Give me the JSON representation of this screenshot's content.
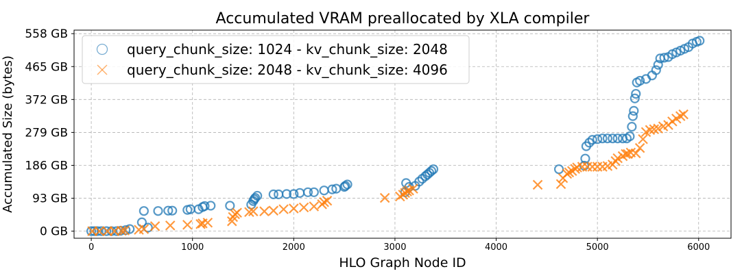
{
  "chart_data": {
    "type": "scatter",
    "title": "Accumulated VRAM preallocated by XLA compiler",
    "xlabel": "HLO Graph Node ID",
    "ylabel": "Accumulated Size (bytes)",
    "xlim": [
      -170,
      6320
    ],
    "ylim": [
      -20,
      568
    ],
    "x_ticks": [
      0,
      1000,
      2000,
      3000,
      4000,
      5000,
      6000
    ],
    "x_tick_labels": [
      "0",
      "1000",
      "2000",
      "3000",
      "4000",
      "5000",
      "6000"
    ],
    "y_ticks": [
      0,
      93,
      186,
      279,
      372,
      465,
      558
    ],
    "y_tick_labels": [
      "0 GB",
      "93 GB",
      "186 GB",
      "279 GB",
      "372 GB",
      "465 GB",
      "558 GB"
    ],
    "grid": true,
    "legend_position": "top-left",
    "series": [
      {
        "name": "query_chunk_size: 1024 - kv_chunk_size: 2048",
        "marker": "circle",
        "color": "#1f77b4",
        "points": [
          [
            0,
            0
          ],
          [
            30,
            0
          ],
          [
            60,
            0
          ],
          [
            100,
            0
          ],
          [
            150,
            0
          ],
          [
            200,
            0
          ],
          [
            250,
            0
          ],
          [
            290,
            1
          ],
          [
            340,
            3
          ],
          [
            380,
            6
          ],
          [
            500,
            25
          ],
          [
            520,
            57
          ],
          [
            560,
            10
          ],
          [
            660,
            57
          ],
          [
            760,
            58
          ],
          [
            800,
            58
          ],
          [
            950,
            60
          ],
          [
            980,
            62
          ],
          [
            1060,
            62
          ],
          [
            1100,
            68
          ],
          [
            1120,
            71
          ],
          [
            1180,
            72
          ],
          [
            1370,
            72
          ],
          [
            1580,
            75
          ],
          [
            1600,
            85
          ],
          [
            1610,
            90
          ],
          [
            1620,
            94
          ],
          [
            1640,
            100
          ],
          [
            1800,
            104
          ],
          [
            1850,
            104
          ],
          [
            1930,
            105
          ],
          [
            2000,
            105
          ],
          [
            2060,
            108
          ],
          [
            2140,
            110
          ],
          [
            2200,
            110
          ],
          [
            2300,
            115
          ],
          [
            2380,
            118
          ],
          [
            2420,
            120
          ],
          [
            2500,
            125
          ],
          [
            2510,
            128
          ],
          [
            2530,
            132
          ],
          [
            3100,
            110
          ],
          [
            3110,
            136
          ],
          [
            3140,
            125
          ],
          [
            3200,
            128
          ],
          [
            3240,
            140
          ],
          [
            3270,
            148
          ],
          [
            3300,
            155
          ],
          [
            3320,
            160
          ],
          [
            3340,
            165
          ],
          [
            3360,
            170
          ],
          [
            3380,
            175
          ],
          [
            4620,
            175
          ],
          [
            4870,
            185
          ],
          [
            4880,
            205
          ],
          [
            4890,
            240
          ],
          [
            4920,
            250
          ],
          [
            4950,
            258
          ],
          [
            5000,
            260
          ],
          [
            5050,
            262
          ],
          [
            5100,
            262
          ],
          [
            5150,
            262
          ],
          [
            5200,
            262
          ],
          [
            5250,
            262
          ],
          [
            5290,
            262
          ],
          [
            5320,
            268
          ],
          [
            5340,
            295
          ],
          [
            5350,
            325
          ],
          [
            5360,
            340
          ],
          [
            5370,
            375
          ],
          [
            5380,
            388
          ],
          [
            5390,
            420
          ],
          [
            5420,
            425
          ],
          [
            5480,
            430
          ],
          [
            5540,
            440
          ],
          [
            5580,
            455
          ],
          [
            5600,
            470
          ],
          [
            5620,
            488
          ],
          [
            5660,
            490
          ],
          [
            5700,
            492
          ],
          [
            5740,
            500
          ],
          [
            5780,
            505
          ],
          [
            5820,
            510
          ],
          [
            5860,
            515
          ],
          [
            5900,
            520
          ],
          [
            5940,
            530
          ],
          [
            5980,
            535
          ],
          [
            6010,
            538
          ]
        ]
      },
      {
        "name": "query_chunk_size: 2048 - kv_chunk_size: 4096",
        "marker": "x",
        "color": "#ff7f0e",
        "points": [
          [
            10,
            0
          ],
          [
            80,
            0
          ],
          [
            160,
            0
          ],
          [
            230,
            0
          ],
          [
            300,
            1
          ],
          [
            330,
            2
          ],
          [
            470,
            4
          ],
          [
            520,
            6
          ],
          [
            630,
            14
          ],
          [
            780,
            16
          ],
          [
            950,
            18
          ],
          [
            1080,
            20
          ],
          [
            1100,
            22
          ],
          [
            1150,
            24
          ],
          [
            1390,
            28
          ],
          [
            1400,
            40
          ],
          [
            1420,
            48
          ],
          [
            1440,
            52
          ],
          [
            1560,
            54
          ],
          [
            1600,
            56
          ],
          [
            1710,
            56
          ],
          [
            1800,
            58
          ],
          [
            1900,
            62
          ],
          [
            2000,
            64
          ],
          [
            2100,
            67
          ],
          [
            2200,
            70
          ],
          [
            2280,
            76
          ],
          [
            2300,
            82
          ],
          [
            2330,
            86
          ],
          [
            2900,
            94
          ],
          [
            3050,
            98
          ],
          [
            3080,
            103
          ],
          [
            3100,
            108
          ],
          [
            3120,
            112
          ],
          [
            3140,
            115
          ],
          [
            3180,
            120
          ],
          [
            4410,
            131
          ],
          [
            4640,
            133
          ],
          [
            4660,
            150
          ],
          [
            4700,
            162
          ],
          [
            4720,
            166
          ],
          [
            4750,
            170
          ],
          [
            4780,
            176
          ],
          [
            4800,
            180
          ],
          [
            4850,
            182
          ],
          [
            4900,
            182
          ],
          [
            4950,
            182
          ],
          [
            5000,
            182
          ],
          [
            5050,
            182
          ],
          [
            5100,
            184
          ],
          [
            5150,
            188
          ],
          [
            5180,
            198
          ],
          [
            5200,
            206
          ],
          [
            5250,
            212
          ],
          [
            5280,
            218
          ],
          [
            5300,
            218
          ],
          [
            5330,
            222
          ],
          [
            5380,
            220
          ],
          [
            5420,
            235
          ],
          [
            5450,
            260
          ],
          [
            5480,
            280
          ],
          [
            5520,
            286
          ],
          [
            5560,
            288
          ],
          [
            5600,
            290
          ],
          [
            5650,
            296
          ],
          [
            5700,
            300
          ],
          [
            5740,
            310
          ],
          [
            5780,
            318
          ],
          [
            5820,
            325
          ],
          [
            5850,
            330
          ]
        ]
      }
    ]
  }
}
